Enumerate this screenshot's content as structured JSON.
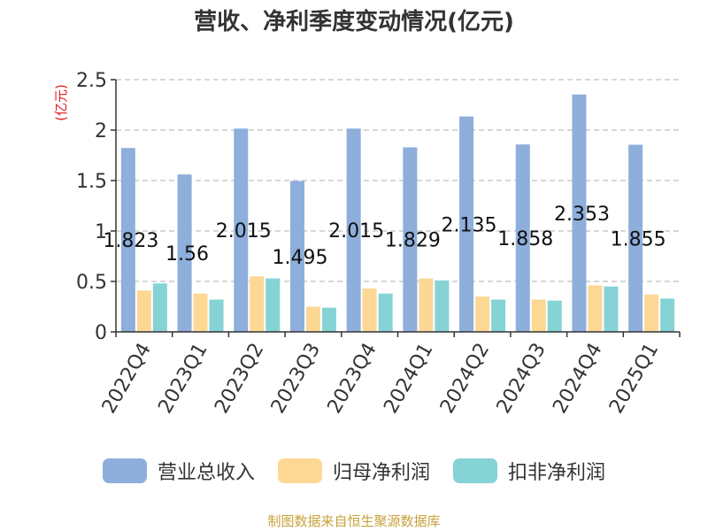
{
  "chart_data": {
    "type": "bar",
    "title": "营收、净利季度变动情况(亿元)",
    "ylabel": "(亿元)",
    "categories": [
      "2022Q4",
      "2023Q1",
      "2023Q2",
      "2023Q3",
      "2023Q4",
      "2024Q1",
      "2024Q2",
      "2024Q3",
      "2024Q4",
      "2025Q1"
    ],
    "ylim": [
      0,
      2.5
    ],
    "yticks": [
      "0",
      "0.5",
      "1",
      "1.5",
      "2",
      "2.5"
    ],
    "grid": true,
    "legend_position": "bottom",
    "series": [
      {
        "name": "营业总收入",
        "color": "#8eaedb",
        "values": [
          1.823,
          1.56,
          2.015,
          1.495,
          2.015,
          1.829,
          2.135,
          1.858,
          2.353,
          1.855
        ],
        "labels": [
          "1.823",
          "1.56",
          "2.015",
          "1.495",
          "2.015",
          "1.829",
          "2.135",
          "1.858",
          "2.353",
          "1.855"
        ]
      },
      {
        "name": "归母净利润",
        "color": "#fdd794",
        "values": [
          0.41,
          0.38,
          0.55,
          0.25,
          0.43,
          0.53,
          0.35,
          0.32,
          0.46,
          0.37
        ]
      },
      {
        "name": "扣非净利润",
        "color": "#86d3d6",
        "values": [
          0.48,
          0.32,
          0.53,
          0.24,
          0.38,
          0.51,
          0.32,
          0.31,
          0.45,
          0.33
        ]
      }
    ],
    "source": "制图数据来自恒生聚源数据库"
  }
}
